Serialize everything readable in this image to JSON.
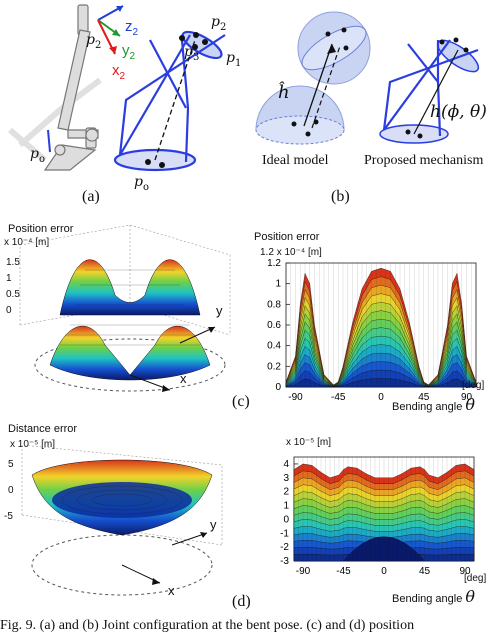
{
  "panel_a": {
    "label": "(a)",
    "frame_labels": {
      "p2_left": "p",
      "p2_left_sub": "2",
      "z": "z",
      "z_sub": "2",
      "y": "y",
      "y_sub": "2",
      "x": "x",
      "x_sub": "2",
      "po_left": "p",
      "po_left_sub": "o"
    },
    "point_labels": {
      "p2": "p",
      "p2_sub": "2",
      "p3": "p",
      "p3_sub": "3",
      "p1": "p",
      "p1_sub": "1",
      "po": "p",
      "po_sub": "o"
    },
    "colors": {
      "z_axis": "#1d3fd6",
      "y_axis": "#1f9a2e",
      "x_axis": "#e11b1b",
      "mechanism": "#2a3de0"
    }
  },
  "panel_b": {
    "label": "(b)",
    "h_hat": "ĥ",
    "h_func": "h(ϕ, θ)",
    "ideal_label": "Ideal model",
    "proposed_label": "Proposed mechanism"
  },
  "panel_c": {
    "label": "(c)",
    "left_title": "Position error",
    "left_scale": "x 10⁻⁴ [m]",
    "left_zticks": [
      "1.5",
      "1",
      "0.5",
      "0"
    ],
    "left_axis_x": "x",
    "left_axis_y": "y",
    "right_title": "Position error",
    "right_scale_prefix": "1.2",
    "right_scale": "x 10⁻⁴ [m]",
    "right_xlabel": "Bending angle",
    "right_xlabel_sym": "θ",
    "right_unit": "[deg]"
  },
  "panel_d": {
    "label": "(d)",
    "left_title": "Distance error",
    "left_scale": "x 10⁻⁵ [m]",
    "left_zticks": [
      "5",
      "0",
      "-5"
    ],
    "left_axis_x": "x",
    "left_axis_y": "y",
    "right_scale": "x 10⁻⁵ [m]",
    "right_xlabel": "Bending angle",
    "right_xlabel_sym": "θ",
    "right_unit": "[deg]"
  },
  "caption": "Fig. 9. (a) and (b) Joint configuration at the bent pose. (c) and (d) position",
  "chart_data": [
    {
      "type": "area",
      "title": "Position error",
      "ylabel": "x 10⁻⁴ [m]",
      "xlabel": "Bending angle θ",
      "x_unit": "[deg]",
      "xticks": [
        -90,
        -45,
        0,
        45,
        90
      ],
      "yticks": [
        0,
        0.2,
        0.4,
        0.6,
        0.8,
        1,
        1.2
      ],
      "ylim": [
        0,
        1.2
      ],
      "xlim": [
        -100,
        100
      ],
      "x": [
        -100,
        -90,
        -85,
        -80,
        -75,
        -70,
        -60,
        -50,
        -45,
        -40,
        -30,
        -20,
        -10,
        0,
        10,
        20,
        30,
        40,
        45,
        50,
        60,
        70,
        75,
        80,
        85,
        90,
        100
      ],
      "y": [
        0.05,
        0.3,
        0.8,
        1.1,
        1.0,
        0.6,
        0.12,
        0.02,
        0.05,
        0.2,
        0.62,
        0.95,
        1.12,
        1.15,
        1.12,
        0.95,
        0.62,
        0.2,
        0.05,
        0.02,
        0.12,
        0.6,
        1.0,
        1.1,
        0.8,
        0.3,
        0.05
      ]
    },
    {
      "type": "area",
      "title": "",
      "ylabel": "x 10⁻⁵ [m]",
      "xlabel": "Bending angle θ",
      "x_unit": "[deg]",
      "xticks": [
        -90,
        -45,
        0,
        45,
        90
      ],
      "yticks": [
        -3,
        -2,
        -1,
        0,
        1,
        2,
        3,
        4
      ],
      "ylim": [
        -3,
        4.5
      ],
      "xlim": [
        -100,
        100
      ],
      "x": [
        -100,
        -90,
        -80,
        -70,
        -60,
        -50,
        -45,
        -40,
        -30,
        -20,
        -10,
        0,
        10,
        20,
        30,
        40,
        45,
        50,
        60,
        70,
        80,
        90,
        100
      ],
      "top": [
        3.6,
        4.0,
        3.9,
        3.4,
        3.0,
        3.2,
        3.6,
        3.8,
        3.7,
        3.3,
        3.0,
        3.0,
        3.0,
        3.3,
        3.7,
        3.8,
        3.6,
        3.2,
        3.0,
        3.4,
        3.9,
        4.0,
        3.6
      ],
      "bottom": -3.0
    }
  ]
}
